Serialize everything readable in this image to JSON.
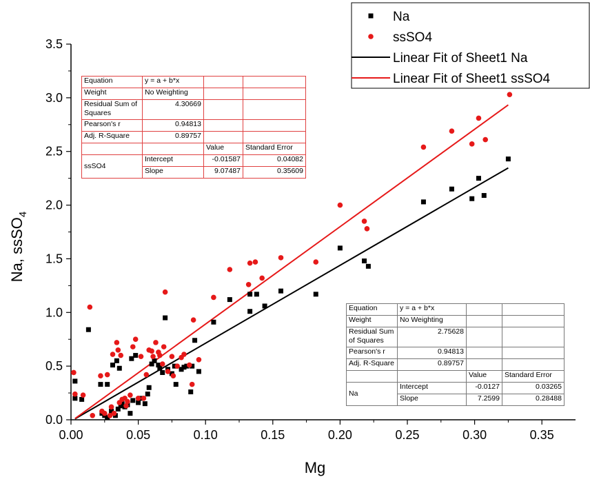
{
  "chart_data": {
    "type": "scatter",
    "xlabel": "Mg",
    "ylabel": "Na, ssSO",
    "ylabel_subscript": "4",
    "xlim": [
      0.0,
      0.375
    ],
    "ylim": [
      0.0,
      3.5
    ],
    "x_ticks": [
      "0.00",
      "0.05",
      "0.10",
      "0.15",
      "0.20",
      "0.25",
      "0.30",
      "0.35"
    ],
    "y_ticks": [
      "0.0",
      "0.5",
      "1.0",
      "1.5",
      "2.0",
      "2.5",
      "3.0",
      "3.5"
    ],
    "grid": false,
    "legend_position": "top-right",
    "series": [
      {
        "name": "Na",
        "marker": "square",
        "color": "#000000",
        "points": [
          [
            0.003,
            0.36
          ],
          [
            0.003,
            0.2
          ],
          [
            0.008,
            0.19
          ],
          [
            0.013,
            0.84
          ],
          [
            0.022,
            0.33
          ],
          [
            0.023,
            0.06
          ],
          [
            0.025,
            0.04
          ],
          [
            0.027,
            0.33
          ],
          [
            0.027,
            0.02
          ],
          [
            0.03,
            0.08
          ],
          [
            0.031,
            0.51
          ],
          [
            0.033,
            0.04
          ],
          [
            0.034,
            0.55
          ],
          [
            0.035,
            0.1
          ],
          [
            0.036,
            0.48
          ],
          [
            0.037,
            0.13
          ],
          [
            0.038,
            0.15
          ],
          [
            0.04,
            0.12
          ],
          [
            0.042,
            0.14
          ],
          [
            0.044,
            0.06
          ],
          [
            0.045,
            0.57
          ],
          [
            0.046,
            0.18
          ],
          [
            0.048,
            0.6
          ],
          [
            0.05,
            0.16
          ],
          [
            0.052,
            0.2
          ],
          [
            0.055,
            0.15
          ],
          [
            0.057,
            0.24
          ],
          [
            0.058,
            0.3
          ],
          [
            0.06,
            0.52
          ],
          [
            0.062,
            0.55
          ],
          [
            0.065,
            0.51
          ],
          [
            0.066,
            0.48
          ],
          [
            0.068,
            0.44
          ],
          [
            0.07,
            0.95
          ],
          [
            0.072,
            0.47
          ],
          [
            0.075,
            0.43
          ],
          [
            0.077,
            0.5
          ],
          [
            0.078,
            0.33
          ],
          [
            0.082,
            0.47
          ],
          [
            0.084,
            0.49
          ],
          [
            0.086,
            0.5
          ],
          [
            0.089,
            0.26
          ],
          [
            0.09,
            0.5
          ],
          [
            0.092,
            0.74
          ],
          [
            0.095,
            0.45
          ],
          [
            0.106,
            0.91
          ],
          [
            0.118,
            1.12
          ],
          [
            0.133,
            1.17
          ],
          [
            0.133,
            1.01
          ],
          [
            0.138,
            1.17
          ],
          [
            0.144,
            1.06
          ],
          [
            0.156,
            1.2
          ],
          [
            0.182,
            1.17
          ],
          [
            0.2,
            1.6
          ],
          [
            0.218,
            1.48
          ],
          [
            0.221,
            1.43
          ],
          [
            0.262,
            2.03
          ],
          [
            0.283,
            2.15
          ],
          [
            0.298,
            2.06
          ],
          [
            0.303,
            2.25
          ],
          [
            0.307,
            2.09
          ],
          [
            0.325,
            2.43
          ]
        ]
      },
      {
        "name": "ssSO4",
        "marker": "circle",
        "color": "#e61919",
        "points": [
          [
            0.002,
            0.44
          ],
          [
            0.003,
            0.24
          ],
          [
            0.009,
            0.23
          ],
          [
            0.014,
            1.05
          ],
          [
            0.016,
            0.04
          ],
          [
            0.022,
            0.41
          ],
          [
            0.023,
            0.08
          ],
          [
            0.025,
            0.06
          ],
          [
            0.027,
            0.42
          ],
          [
            0.029,
            0.04
          ],
          [
            0.03,
            0.12
          ],
          [
            0.031,
            0.61
          ],
          [
            0.032,
            0.06
          ],
          [
            0.034,
            0.72
          ],
          [
            0.035,
            0.65
          ],
          [
            0.036,
            0.16
          ],
          [
            0.037,
            0.6
          ],
          [
            0.038,
            0.19
          ],
          [
            0.04,
            0.2
          ],
          [
            0.041,
            0.13
          ],
          [
            0.042,
            0.17
          ],
          [
            0.044,
            0.23
          ],
          [
            0.046,
            0.68
          ],
          [
            0.048,
            0.75
          ],
          [
            0.05,
            0.2
          ],
          [
            0.052,
            0.59
          ],
          [
            0.054,
            0.2
          ],
          [
            0.056,
            0.42
          ],
          [
            0.058,
            0.65
          ],
          [
            0.06,
            0.64
          ],
          [
            0.061,
            0.59
          ],
          [
            0.063,
            0.72
          ],
          [
            0.065,
            0.63
          ],
          [
            0.066,
            0.6
          ],
          [
            0.068,
            0.52
          ],
          [
            0.069,
            0.68
          ],
          [
            0.07,
            1.19
          ],
          [
            0.072,
            0.45
          ],
          [
            0.075,
            0.59
          ],
          [
            0.076,
            0.41
          ],
          [
            0.079,
            0.5
          ],
          [
            0.082,
            0.58
          ],
          [
            0.084,
            0.61
          ],
          [
            0.088,
            0.51
          ],
          [
            0.09,
            0.33
          ],
          [
            0.091,
            0.93
          ],
          [
            0.095,
            0.56
          ],
          [
            0.106,
            1.14
          ],
          [
            0.118,
            1.4
          ],
          [
            0.132,
            1.26
          ],
          [
            0.133,
            1.46
          ],
          [
            0.137,
            1.47
          ],
          [
            0.142,
            1.32
          ],
          [
            0.156,
            1.51
          ],
          [
            0.182,
            1.47
          ],
          [
            0.2,
            2.0
          ],
          [
            0.218,
            1.85
          ],
          [
            0.22,
            1.78
          ],
          [
            0.262,
            2.54
          ],
          [
            0.283,
            2.69
          ],
          [
            0.298,
            2.57
          ],
          [
            0.303,
            2.81
          ],
          [
            0.308,
            2.61
          ],
          [
            0.326,
            3.03
          ]
        ]
      },
      {
        "name": "Linear Fit of Sheet1 Na",
        "type": "line",
        "color": "#000000",
        "intercept": -0.0127,
        "slope": 7.2599,
        "x_range": [
          0.003,
          0.325
        ]
      },
      {
        "name": "Linear Fit of Sheet1 ssSO4",
        "type": "line",
        "color": "#e61919",
        "intercept": -0.01587,
        "slope": 9.07487,
        "x_range": [
          0.003,
          0.325
        ]
      }
    ],
    "legend": [
      "Na",
      "ssSO4",
      "Linear Fit of Sheet1 Na",
      "Linear Fit of Sheet1 ssSO4"
    ]
  },
  "stats_ssso4": {
    "equation_label": "Equation",
    "equation": "y = a + b*x",
    "weight_label": "Weight",
    "weight": "No Weighting",
    "rss_label": "Residual Sum of Squares",
    "rss": "4.30669",
    "pearson_label": "Pearson's r",
    "pearson": "0.94813",
    "adj_r2_label": "Adj. R-Square",
    "adj_r2": "0.89757",
    "value_header": "Value",
    "se_header": "Standard Error",
    "series_label": "ssSO4",
    "intercept_label": "Intercept",
    "intercept": "-0.01587",
    "intercept_se": "0.04082",
    "slope_label": "Slope",
    "slope": "9.07487",
    "slope_se": "0.35609"
  },
  "stats_na": {
    "equation_label": "Equation",
    "equation": "y = a + b*x",
    "weight_label": "Weight",
    "weight": "No Weighting",
    "rss_label": "Residual Sum of Squares",
    "rss": "2.75628",
    "pearson_label": "Pearson's r",
    "pearson": "0.94813",
    "adj_r2_label": "Adj. R-Square",
    "adj_r2": "0.89757",
    "value_header": "Value",
    "se_header": "Standard Error",
    "series_label": "Na",
    "intercept_label": "Intercept",
    "intercept": "-0.0127",
    "intercept_se": "0.03265",
    "slope_label": "Slope",
    "slope": "7.2599",
    "slope_se": "0.28488"
  }
}
